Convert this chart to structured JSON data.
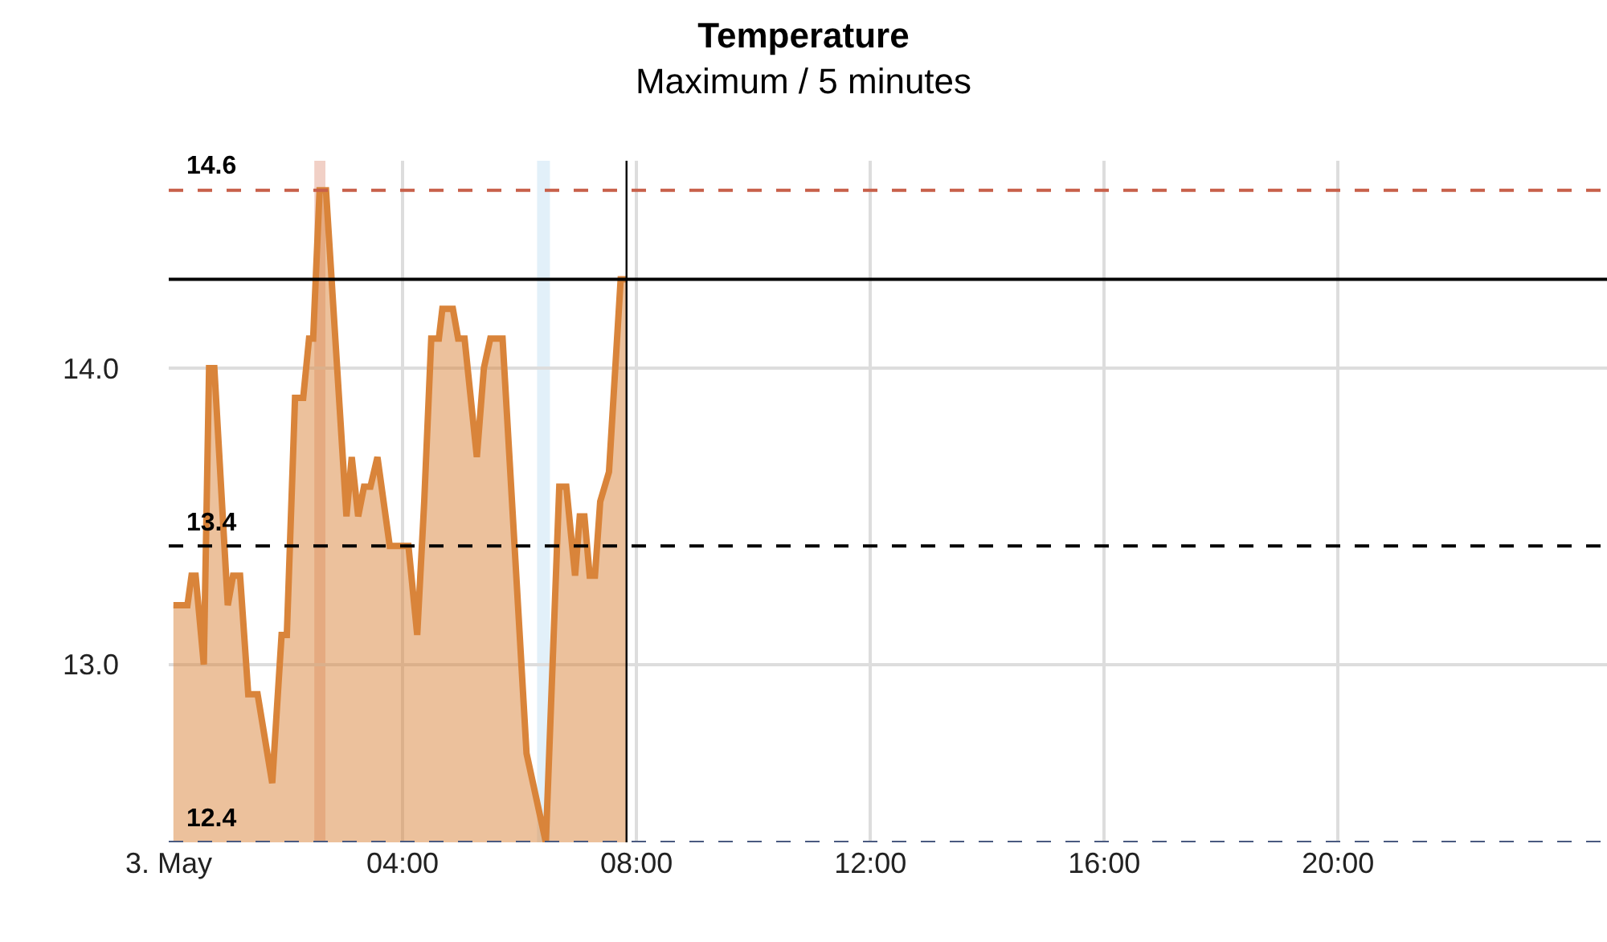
{
  "chart_data": {
    "type": "area",
    "title": "Temperature",
    "subtitle": "Maximum / 5 minutes",
    "x": [
      0.08,
      0.32,
      0.39,
      0.46,
      0.6,
      0.69,
      0.78,
      1.01,
      1.1,
      1.22,
      1.36,
      1.52,
      1.77,
      1.93,
      2.02,
      2.16,
      2.3,
      2.4,
      2.47,
      2.58,
      2.69,
      3.04,
      3.13,
      3.24,
      3.34,
      3.45,
      3.57,
      3.78,
      4.1,
      4.25,
      4.37,
      4.49,
      4.62,
      4.68,
      4.86,
      4.95,
      5.06,
      5.27,
      5.39,
      5.5,
      5.71,
      6.12,
      6.45,
      6.68,
      6.8,
      6.95,
      7.03,
      7.11,
      7.2,
      7.29,
      7.38,
      7.53,
      7.73,
      7.83
    ],
    "series": [
      {
        "color": "#d9843a",
        "values": [
          13.2,
          13.2,
          13.3,
          13.3,
          13.0,
          14.0,
          14.0,
          13.2,
          13.3,
          13.3,
          12.9,
          12.9,
          12.6,
          13.1,
          13.1,
          13.9,
          13.9,
          14.1,
          14.1,
          14.6,
          14.6,
          13.5,
          13.7,
          13.5,
          13.6,
          13.6,
          13.7,
          13.4,
          13.4,
          13.1,
          13.55,
          14.1,
          14.1,
          14.2,
          14.2,
          14.1,
          14.1,
          13.7,
          14.0,
          14.1,
          14.1,
          12.7,
          12.4,
          13.6,
          13.6,
          13.3,
          13.5,
          13.5,
          13.3,
          13.3,
          13.55,
          13.65,
          14.3,
          14.3
        ]
      }
    ],
    "xlim": [
      0,
      24.6
    ],
    "xticks": [
      {
        "value": 0,
        "label": "3. May"
      },
      {
        "value": 4,
        "label": "04:00"
      },
      {
        "value": 8,
        "label": "08:00"
      },
      {
        "value": 12,
        "label": "12:00"
      },
      {
        "value": 16,
        "label": "16:00"
      },
      {
        "value": 20,
        "label": "20:00"
      }
    ],
    "ylim": [
      12.4,
      14.7
    ],
    "yticks": [
      {
        "value": 13,
        "label": "13.0"
      },
      {
        "value": 14,
        "label": "14.0"
      }
    ],
    "ref_lines": [
      {
        "axis": "y",
        "value": 14.6,
        "label": "14.6",
        "color": "#c8604a",
        "line_style": "dashed"
      },
      {
        "axis": "y",
        "value": 13.4,
        "label": "13.4",
        "color": "#000000",
        "line_style": "dashed"
      },
      {
        "axis": "y",
        "value": 12.4,
        "label": "12.4",
        "color": "#4a5a80",
        "line_style": "dashed"
      },
      {
        "axis": "y",
        "value": 14.3,
        "color": "#000000",
        "line_style": "solid"
      },
      {
        "axis": "x",
        "value": 7.83,
        "color": "#000000",
        "line_style": "solid"
      }
    ],
    "bands": [
      {
        "axis": "x",
        "from": 2.49,
        "to": 2.68,
        "color": "#e8b0a0"
      },
      {
        "axis": "x",
        "from": 6.3,
        "to": 6.52,
        "color": "#cfe6f5"
      }
    ],
    "grid": true,
    "marker": "none",
    "line_style": "solid"
  }
}
